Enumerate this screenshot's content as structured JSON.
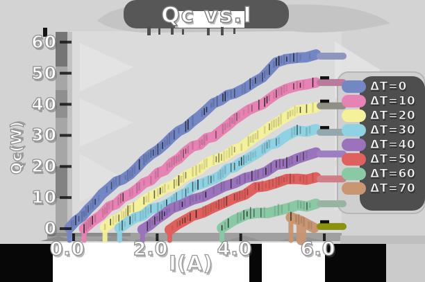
{
  "chart_data": {
    "type": "line",
    "title": "Qc vs.I",
    "xlabel": "I(A)",
    "ylabel": "Qc(W)",
    "xlim": [
      0,
      6.6
    ],
    "ylim": [
      0,
      60
    ],
    "x_ticks": [
      0.0,
      2.0,
      4.0,
      6.0
    ],
    "y_ticks": [
      0,
      10,
      20,
      30,
      40,
      50,
      60
    ],
    "x_tick_labels": [
      "0.0",
      "2.0",
      "4.0",
      "6.0"
    ],
    "y_tick_labels": [
      "0",
      "10",
      "20",
      "30",
      "40",
      "50",
      "60"
    ],
    "grid": false,
    "legend_position": "right",
    "style": "hand-drawn thick marker bands with end caps",
    "series": [
      {
        "name": "ΔT=0",
        "color": "#7487c5",
        "cap_color": "#8c96bf",
        "end_value": 55.5,
        "cap_mark": false,
        "points": [
          [
            0.05,
            0
          ],
          [
            0.5,
            6
          ],
          [
            1,
            13
          ],
          [
            1.5,
            18
          ],
          [
            2,
            24
          ],
          [
            2.5,
            29
          ],
          [
            3,
            35
          ],
          [
            3.5,
            40
          ],
          [
            4,
            44
          ],
          [
            4.5,
            47
          ],
          [
            5,
            53
          ],
          [
            5.5,
            55
          ],
          [
            5.95,
            56
          ]
        ]
      },
      {
        "name": "ΔT=10",
        "color": "#e783b4",
        "cap_color": "#b97b9b",
        "end_value": 47,
        "cap_mark": true,
        "points": [
          [
            0.4,
            0
          ],
          [
            1,
            7
          ],
          [
            1.5,
            11
          ],
          [
            2,
            16
          ],
          [
            2.5,
            21
          ],
          [
            3,
            26
          ],
          [
            3.5,
            30
          ],
          [
            4,
            35
          ],
          [
            4.5,
            39
          ],
          [
            5,
            43
          ],
          [
            5.5,
            46
          ],
          [
            5.95,
            47
          ]
        ]
      },
      {
        "name": "ΔT=20",
        "color": "#f5f19b",
        "cap_color": "#8f8f85",
        "end_value": 39.5,
        "cap_mark": true,
        "points": [
          [
            0.9,
            0
          ],
          [
            1.5,
            6
          ],
          [
            2,
            10
          ],
          [
            2.5,
            14
          ],
          [
            3,
            18
          ],
          [
            3.5,
            22
          ],
          [
            4,
            25
          ],
          [
            4.5,
            30
          ],
          [
            5,
            34
          ],
          [
            5.5,
            38
          ],
          [
            5.95,
            39
          ]
        ]
      },
      {
        "name": "ΔT=30",
        "color": "#8ed2e3",
        "cap_color": "#93a7ad",
        "end_value": 31,
        "cap_mark": true,
        "points": [
          [
            1.25,
            0
          ],
          [
            2,
            6
          ],
          [
            2.5,
            9
          ],
          [
            3,
            13
          ],
          [
            3.5,
            16
          ],
          [
            4,
            20
          ],
          [
            4.5,
            24
          ],
          [
            5,
            28
          ],
          [
            5.5,
            31
          ],
          [
            5.95,
            32
          ]
        ]
      },
      {
        "name": "ΔT=40",
        "color": "#9b73bd",
        "cap_color": "#9d7ec0",
        "end_value": 24,
        "cap_mark": false,
        "points": [
          [
            1.8,
            0
          ],
          [
            2.5,
            6
          ],
          [
            3,
            9
          ],
          [
            3.5,
            12
          ],
          [
            4,
            15
          ],
          [
            4.5,
            17
          ],
          [
            5,
            20
          ],
          [
            5.5,
            23
          ],
          [
            5.95,
            24.5
          ]
        ]
      },
      {
        "name": "ΔT=50",
        "color": "#e0605e",
        "cap_color": "#d07f87",
        "end_value": 16,
        "cap_mark": false,
        "points": [
          [
            2.45,
            0
          ],
          [
            3,
            4
          ],
          [
            3.5,
            7
          ],
          [
            4,
            10
          ],
          [
            4.5,
            13
          ],
          [
            5,
            15
          ],
          [
            5.5,
            16
          ],
          [
            5.95,
            16.5
          ]
        ]
      },
      {
        "name": "ΔT=60",
        "color": "#89c9a4",
        "cap_color": "#97b3a4",
        "end_value": 8,
        "cap_mark": false,
        "points": [
          [
            3.7,
            0
          ],
          [
            4,
            3
          ],
          [
            4.3,
            4.5
          ],
          [
            4.8,
            5.5
          ],
          [
            5.3,
            7
          ],
          [
            5.95,
            8
          ]
        ]
      },
      {
        "name": "ΔT=70",
        "color": "#c99672",
        "cap_color": "#8b9212",
        "end_value": 0.7,
        "cap_mark": true,
        "points": [
          [
            5.35,
            3.5
          ],
          [
            5.6,
            2
          ],
          [
            5.9,
            0.3
          ]
        ]
      }
    ]
  }
}
